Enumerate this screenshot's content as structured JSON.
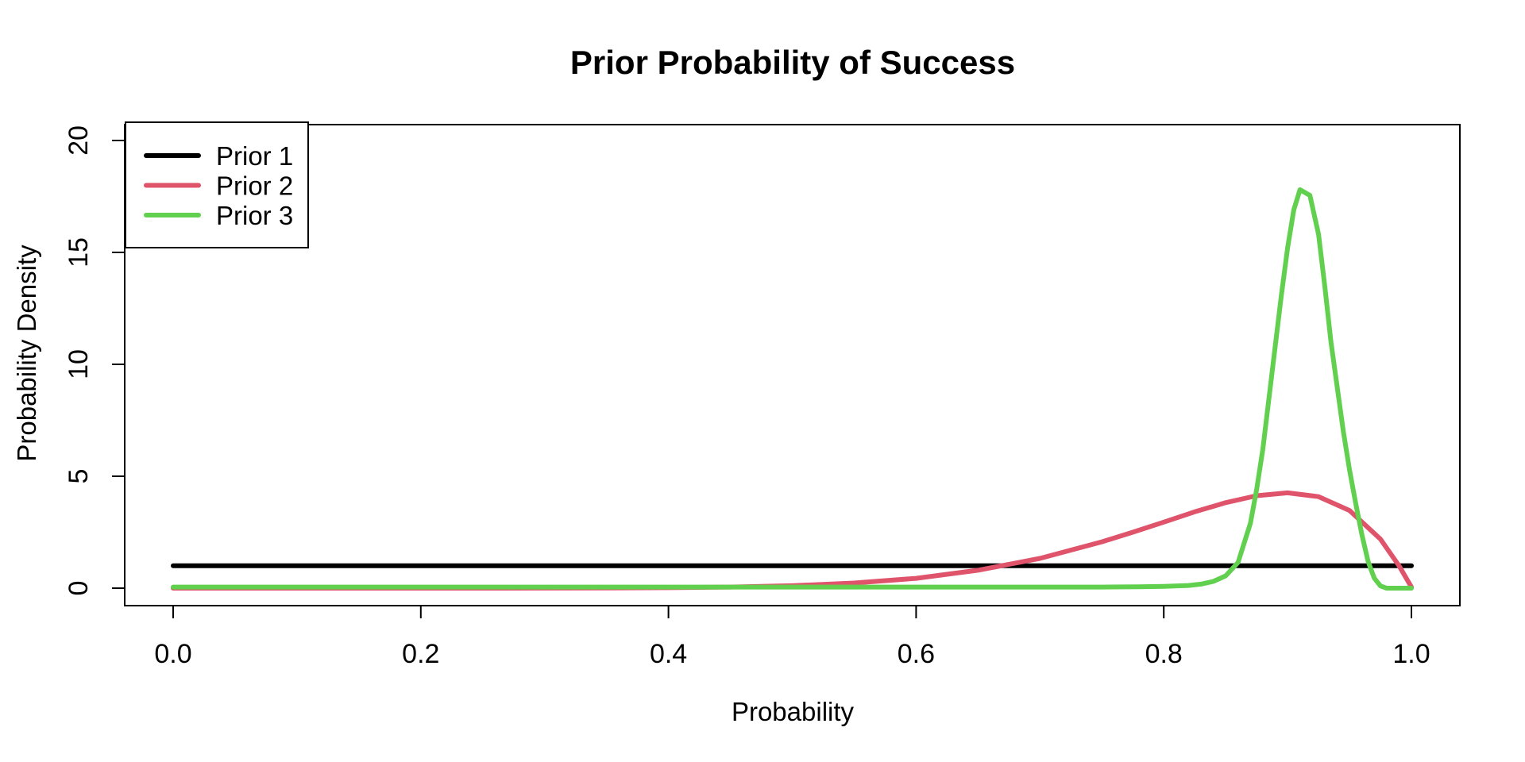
{
  "chart_data": {
    "type": "line",
    "title": "Prior Probability of Success",
    "xlabel": "Probability",
    "ylabel": "Probability Density",
    "xlim": [
      0,
      1
    ],
    "ylim": [
      0,
      20
    ],
    "x_ticks": [
      "0.0",
      "0.2",
      "0.4",
      "0.6",
      "0.8",
      "1.0"
    ],
    "y_ticks": [
      "0",
      "5",
      "10",
      "15",
      "20"
    ],
    "grid": false,
    "background": "#ffffff",
    "legend": {
      "position": "top-left",
      "entries": [
        "Prior 1",
        "Prior 2",
        "Prior 3"
      ]
    },
    "series": [
      {
        "name": "Prior 1",
        "color": "#000000",
        "points": [
          [
            0,
            1
          ],
          [
            1,
            1
          ]
        ]
      },
      {
        "name": "Prior 2",
        "color": "#DF536B",
        "points": [
          [
            0,
            0
          ],
          [
            0.05,
            0
          ],
          [
            0.1,
            0
          ],
          [
            0.15,
            0
          ],
          [
            0.2,
            0
          ],
          [
            0.25,
            0.001
          ],
          [
            0.3,
            0.003
          ],
          [
            0.35,
            0.008
          ],
          [
            0.4,
            0.02
          ],
          [
            0.45,
            0.05
          ],
          [
            0.5,
            0.11
          ],
          [
            0.55,
            0.23
          ],
          [
            0.6,
            0.44
          ],
          [
            0.65,
            0.8
          ],
          [
            0.7,
            1.33
          ],
          [
            0.75,
            2.07
          ],
          [
            0.775,
            2.5
          ],
          [
            0.8,
            2.95
          ],
          [
            0.825,
            3.41
          ],
          [
            0.85,
            3.82
          ],
          [
            0.875,
            4.13
          ],
          [
            0.9,
            4.26
          ],
          [
            0.925,
            4.09
          ],
          [
            0.95,
            3.47
          ],
          [
            0.975,
            2.19
          ],
          [
            0.99,
            1.0
          ],
          [
            1,
            0.05
          ]
        ]
      },
      {
        "name": "Prior 3",
        "color": "#61D04F",
        "points": [
          [
            0,
            0.05
          ],
          [
            0.1,
            0.05
          ],
          [
            0.2,
            0.05
          ],
          [
            0.3,
            0.05
          ],
          [
            0.4,
            0.05
          ],
          [
            0.5,
            0.05
          ],
          [
            0.6,
            0.05
          ],
          [
            0.7,
            0.05
          ],
          [
            0.75,
            0.05
          ],
          [
            0.78,
            0.06
          ],
          [
            0.8,
            0.08
          ],
          [
            0.82,
            0.12
          ],
          [
            0.83,
            0.18
          ],
          [
            0.84,
            0.3
          ],
          [
            0.85,
            0.55
          ],
          [
            0.86,
            1.15
          ],
          [
            0.87,
            2.9
          ],
          [
            0.875,
            4.4
          ],
          [
            0.88,
            6.2
          ],
          [
            0.885,
            8.5
          ],
          [
            0.89,
            10.8
          ],
          [
            0.895,
            13.1
          ],
          [
            0.9,
            15.2
          ],
          [
            0.905,
            16.9
          ],
          [
            0.91,
            17.8
          ],
          [
            0.918,
            17.55
          ],
          [
            0.925,
            15.8
          ],
          [
            0.93,
            13.5
          ],
          [
            0.935,
            11.0
          ],
          [
            0.94,
            9.0
          ],
          [
            0.945,
            7.0
          ],
          [
            0.95,
            5.3
          ],
          [
            0.955,
            3.8
          ],
          [
            0.96,
            2.4
          ],
          [
            0.965,
            1.2
          ],
          [
            0.97,
            0.45
          ],
          [
            0.975,
            0.1
          ],
          [
            0.98,
            0
          ],
          [
            0.99,
            0
          ],
          [
            1,
            0
          ]
        ]
      }
    ]
  }
}
